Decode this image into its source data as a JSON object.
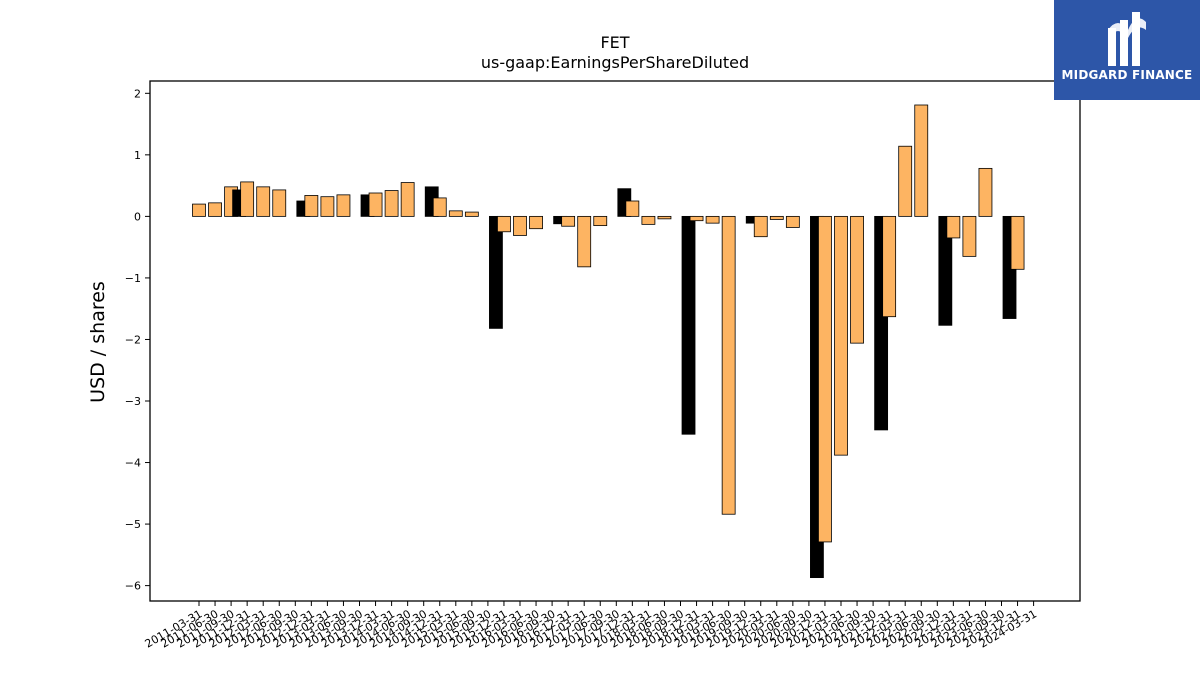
{
  "chart_data": {
    "type": "bar",
    "title": "FET",
    "subtitle": "us-gaap:EarningsPerShareDiluted",
    "xlabel": "",
    "ylabel": "USD / shares",
    "ylim": [
      -6.25,
      2.2
    ],
    "yticks": [
      2,
      1,
      0,
      -1,
      -2,
      -3,
      -4,
      -5,
      -6
    ],
    "ytick_labels": [
      "2",
      "1",
      "0",
      "−1",
      "−2",
      "−3",
      "−4",
      "−5",
      "−6"
    ],
    "grid": false,
    "colors": {
      "quarter": "#fdb462",
      "annual": "#000000",
      "edge": "#000000"
    },
    "categories": [
      "2011-03-31",
      "2011-06-30",
      "2011-09-30",
      "2011-12-31",
      "2012-03-31",
      "2012-06-30",
      "2012-09-30",
      "2012-12-31",
      "2013-03-31",
      "2013-06-30",
      "2013-09-30",
      "2013-12-31",
      "2014-03-31",
      "2014-06-30",
      "2014-09-30",
      "2014-12-31",
      "2015-03-31",
      "2015-06-30",
      "2015-09-30",
      "2015-12-31",
      "2016-03-31",
      "2016-06-30",
      "2016-09-30",
      "2016-12-31",
      "2017-03-31",
      "2017-06-30",
      "2017-09-30",
      "2017-12-31",
      "2018-03-31",
      "2018-06-30",
      "2018-09-30",
      "2018-12-31",
      "2019-03-31",
      "2019-06-30",
      "2019-09-30",
      "2019-12-31",
      "2020-03-31",
      "2020-06-30",
      "2020-09-30",
      "2020-12-31",
      "2021-03-31",
      "2021-06-30",
      "2021-09-30",
      "2021-12-31",
      "2022-03-31",
      "2022-06-30",
      "2022-09-30",
      "2022-12-31",
      "2023-03-31",
      "2023-06-30",
      "2023-09-30",
      "2023-12-31",
      "2024-03-31"
    ],
    "bars": [
      {
        "x": "2011-03-31",
        "value": 0.2,
        "period": "quarter"
      },
      {
        "x": "2011-06-30",
        "value": 0.22,
        "period": "quarter"
      },
      {
        "x": "2011-09-30",
        "value": 0.48,
        "period": "quarter"
      },
      {
        "x": "2011-09-30",
        "value": 0.43,
        "period": "annual"
      },
      {
        "x": "2011-12-31",
        "value": 0.56,
        "period": "quarter"
      },
      {
        "x": "2012-03-31",
        "value": 0.48,
        "period": "quarter"
      },
      {
        "x": "2012-06-30",
        "value": 0.43,
        "period": "quarter"
      },
      {
        "x": "2012-09-30",
        "value": 0.25,
        "period": "annual"
      },
      {
        "x": "2012-12-31",
        "value": 0.34,
        "period": "quarter"
      },
      {
        "x": "2013-03-31",
        "value": 0.32,
        "period": "quarter"
      },
      {
        "x": "2013-06-30",
        "value": 0.35,
        "period": "quarter"
      },
      {
        "x": "2013-09-30",
        "value": 0.35,
        "period": "annual"
      },
      {
        "x": "2013-12-31",
        "value": 0.38,
        "period": "quarter"
      },
      {
        "x": "2014-03-31",
        "value": 0.42,
        "period": "quarter"
      },
      {
        "x": "2014-06-30",
        "value": 0.55,
        "period": "quarter"
      },
      {
        "x": "2014-09-30",
        "value": 0.48,
        "period": "annual"
      },
      {
        "x": "2014-12-31",
        "value": 0.3,
        "period": "quarter"
      },
      {
        "x": "2015-03-31",
        "value": 0.09,
        "period": "quarter"
      },
      {
        "x": "2015-06-30",
        "value": 0.07,
        "period": "quarter"
      },
      {
        "x": "2015-09-30",
        "value": -1.82,
        "period": "annual"
      },
      {
        "x": "2015-12-31",
        "value": -0.25,
        "period": "quarter"
      },
      {
        "x": "2016-03-31",
        "value": -0.31,
        "period": "quarter"
      },
      {
        "x": "2016-06-30",
        "value": -0.2,
        "period": "quarter"
      },
      {
        "x": "2016-09-30",
        "value": -0.12,
        "period": "annual"
      },
      {
        "x": "2016-12-31",
        "value": -0.16,
        "period": "quarter"
      },
      {
        "x": "2017-03-31",
        "value": -0.82,
        "period": "quarter"
      },
      {
        "x": "2017-06-30",
        "value": -0.15,
        "period": "quarter"
      },
      {
        "x": "2017-09-30",
        "value": 0.45,
        "period": "annual"
      },
      {
        "x": "2017-12-31",
        "value": 0.25,
        "period": "quarter"
      },
      {
        "x": "2018-03-31",
        "value": -0.13,
        "period": "quarter"
      },
      {
        "x": "2018-06-30",
        "value": -0.04,
        "period": "quarter"
      },
      {
        "x": "2018-09-30",
        "value": -3.54,
        "period": "annual"
      },
      {
        "x": "2018-12-31",
        "value": -0.07,
        "period": "quarter"
      },
      {
        "x": "2019-03-31",
        "value": -0.11,
        "period": "quarter"
      },
      {
        "x": "2019-06-30",
        "value": -4.84,
        "period": "quarter"
      },
      {
        "x": "2019-09-30",
        "value": -0.11,
        "period": "annual"
      },
      {
        "x": "2019-12-31",
        "value": -0.33,
        "period": "quarter"
      },
      {
        "x": "2020-03-31",
        "value": -0.05,
        "period": "quarter"
      },
      {
        "x": "2020-06-30",
        "value": -0.18,
        "period": "quarter"
      },
      {
        "x": "2020-09-30",
        "value": -5.87,
        "period": "annual"
      },
      {
        "x": "2020-12-31",
        "value": -5.29,
        "period": "quarter"
      },
      {
        "x": "2021-03-31",
        "value": -3.88,
        "period": "quarter"
      },
      {
        "x": "2021-06-30",
        "value": -2.06,
        "period": "quarter"
      },
      {
        "x": "2021-09-30",
        "value": -3.47,
        "period": "annual"
      },
      {
        "x": "2021-12-31",
        "value": -1.63,
        "period": "quarter"
      },
      {
        "x": "2022-03-31",
        "value": 1.14,
        "period": "quarter"
      },
      {
        "x": "2022-06-30",
        "value": 1.81,
        "period": "quarter"
      },
      {
        "x": "2022-09-30",
        "value": -1.77,
        "period": "annual"
      },
      {
        "x": "2022-12-31",
        "value": -0.35,
        "period": "quarter"
      },
      {
        "x": "2023-03-31",
        "value": -0.65,
        "period": "quarter"
      },
      {
        "x": "2023-06-30",
        "value": 0.78,
        "period": "quarter"
      },
      {
        "x": "2023-09-30",
        "value": -1.66,
        "period": "annual"
      },
      {
        "x": "2023-12-31",
        "value": -0.86,
        "period": "quarter"
      }
    ]
  },
  "logo": {
    "text": "MIDGARD FINANCE",
    "background": "#2d56a8",
    "icon": "midgard-m-mark-icon"
  }
}
